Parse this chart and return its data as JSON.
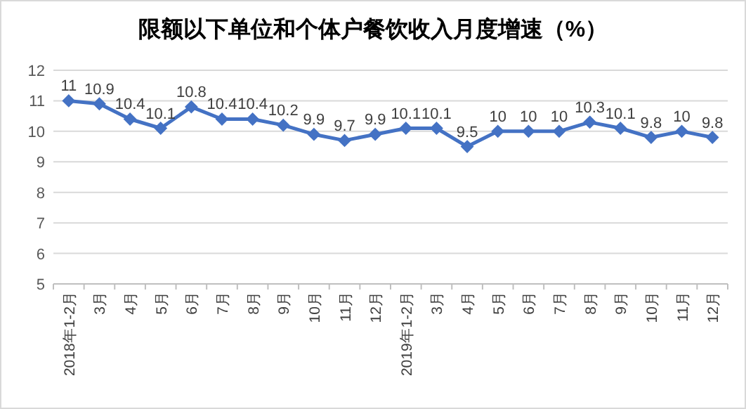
{
  "chart_data": {
    "type": "line",
    "title": "限额以下单位和个体户餐饮收入月度增速（%）",
    "categories": [
      "2018年1-2月",
      "3月",
      "4月",
      "5月",
      "6月",
      "7月",
      "8月",
      "9月",
      "10月",
      "11月",
      "12月",
      "2019年1-2月",
      "3月",
      "4月",
      "5月",
      "6月",
      "7月",
      "8月",
      "9月",
      "10月",
      "11月",
      "12月"
    ],
    "values": [
      11,
      10.9,
      10.4,
      10.1,
      10.8,
      10.4,
      10.4,
      10.2,
      9.9,
      9.7,
      9.9,
      10.1,
      10.1,
      9.5,
      10,
      10,
      10,
      10.3,
      10.1,
      9.8,
      10,
      9.8
    ],
    "color": "#4472c4",
    "ylim": [
      5,
      12
    ],
    "yticks": [
      5,
      6,
      7,
      8,
      9,
      10,
      11,
      12
    ],
    "grid": "y",
    "marker": "diamond",
    "line_style": "solid",
    "data_labels": true
  }
}
